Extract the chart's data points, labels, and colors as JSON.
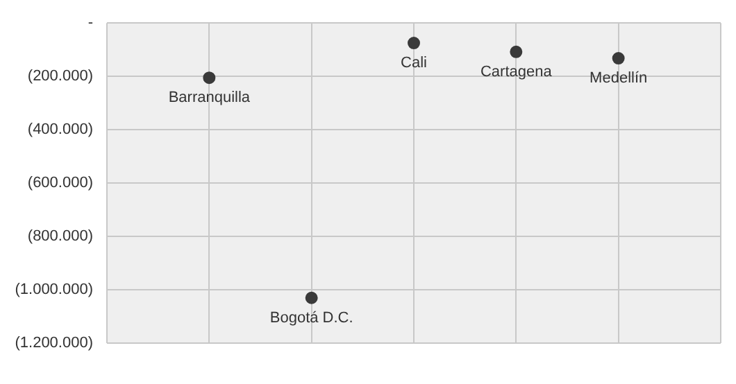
{
  "chart_data": {
    "type": "scatter",
    "categories": [
      null,
      null,
      null,
      null,
      null
    ],
    "values": [
      -205000,
      -1030000,
      -75000,
      -108000,
      -132000
    ],
    "color": "#3a3a3a",
    "marker": "circle",
    "ylim": [
      -1200000,
      0
    ],
    "yticks": [
      {
        "value": 0,
        "label": "-"
      },
      {
        "value": -200000,
        "label": "(200.000)"
      },
      {
        "value": -400000,
        "label": "(400.000)"
      },
      {
        "value": -600000,
        "label": "(600.000)"
      },
      {
        "value": -800000,
        "label": "(800.000)"
      },
      {
        "value": -1000000,
        "label": "(1.000.000)"
      },
      {
        "value": -1200000,
        "label": "(1.200.000)"
      }
    ],
    "grid": true,
    "annotations": [
      "Barranquilla",
      "Bogotá D.C.",
      "Cali",
      "Cartagena",
      "Medellín"
    ]
  }
}
